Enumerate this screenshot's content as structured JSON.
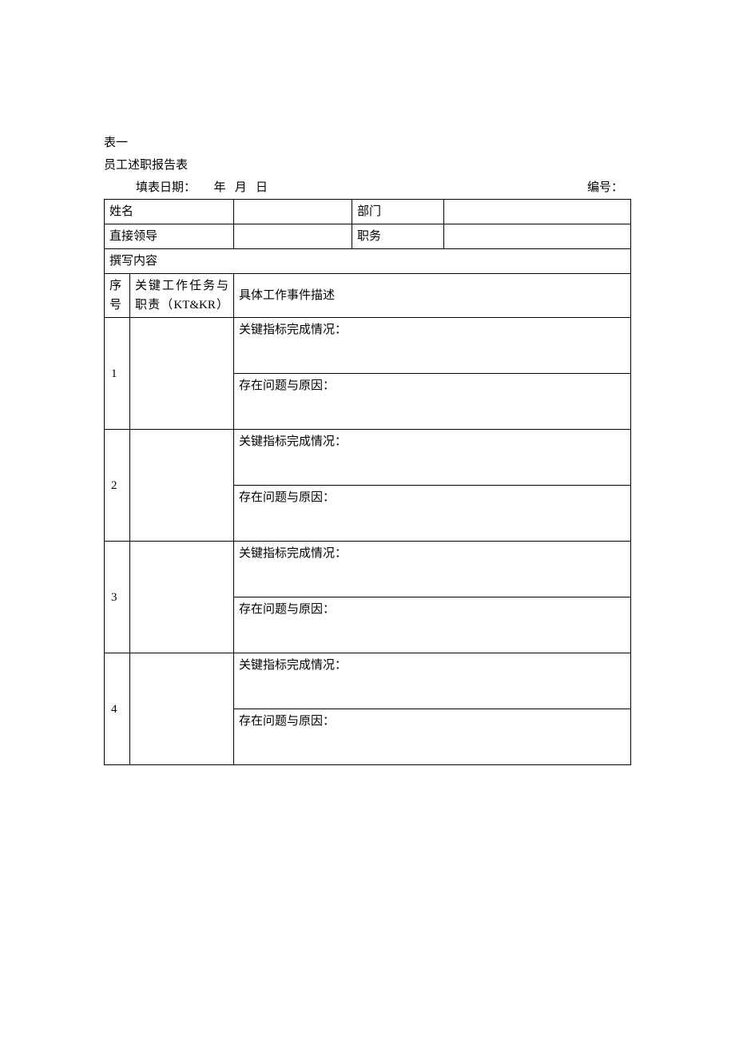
{
  "header": {
    "table_label": "表一",
    "title": "员工述职报告表",
    "date_label": "填表日期：",
    "year_unit": "年",
    "month_unit": "月",
    "day_unit": "日",
    "serial_label": "编号："
  },
  "info": {
    "name_label": "姓名",
    "name_value": "",
    "dept_label": "部门",
    "dept_value": "",
    "leader_label": "直接领导",
    "leader_value": "",
    "position_label": "职务",
    "position_value": ""
  },
  "content_header": "撰写内容",
  "columns": {
    "seq": "序号",
    "task": "关键工作任务与职责（KT&KR）",
    "desc": "具体工作事件描述"
  },
  "row_labels": {
    "kpi": "关键指标完成情况：",
    "issue": "存在问题与原因："
  },
  "rows": [
    {
      "seq": "1",
      "task": "",
      "kpi": "",
      "issue": ""
    },
    {
      "seq": "2",
      "task": "",
      "kpi": "",
      "issue": ""
    },
    {
      "seq": "3",
      "task": "",
      "kpi": "",
      "issue": ""
    },
    {
      "seq": "4",
      "task": "",
      "kpi": "",
      "issue": ""
    }
  ]
}
